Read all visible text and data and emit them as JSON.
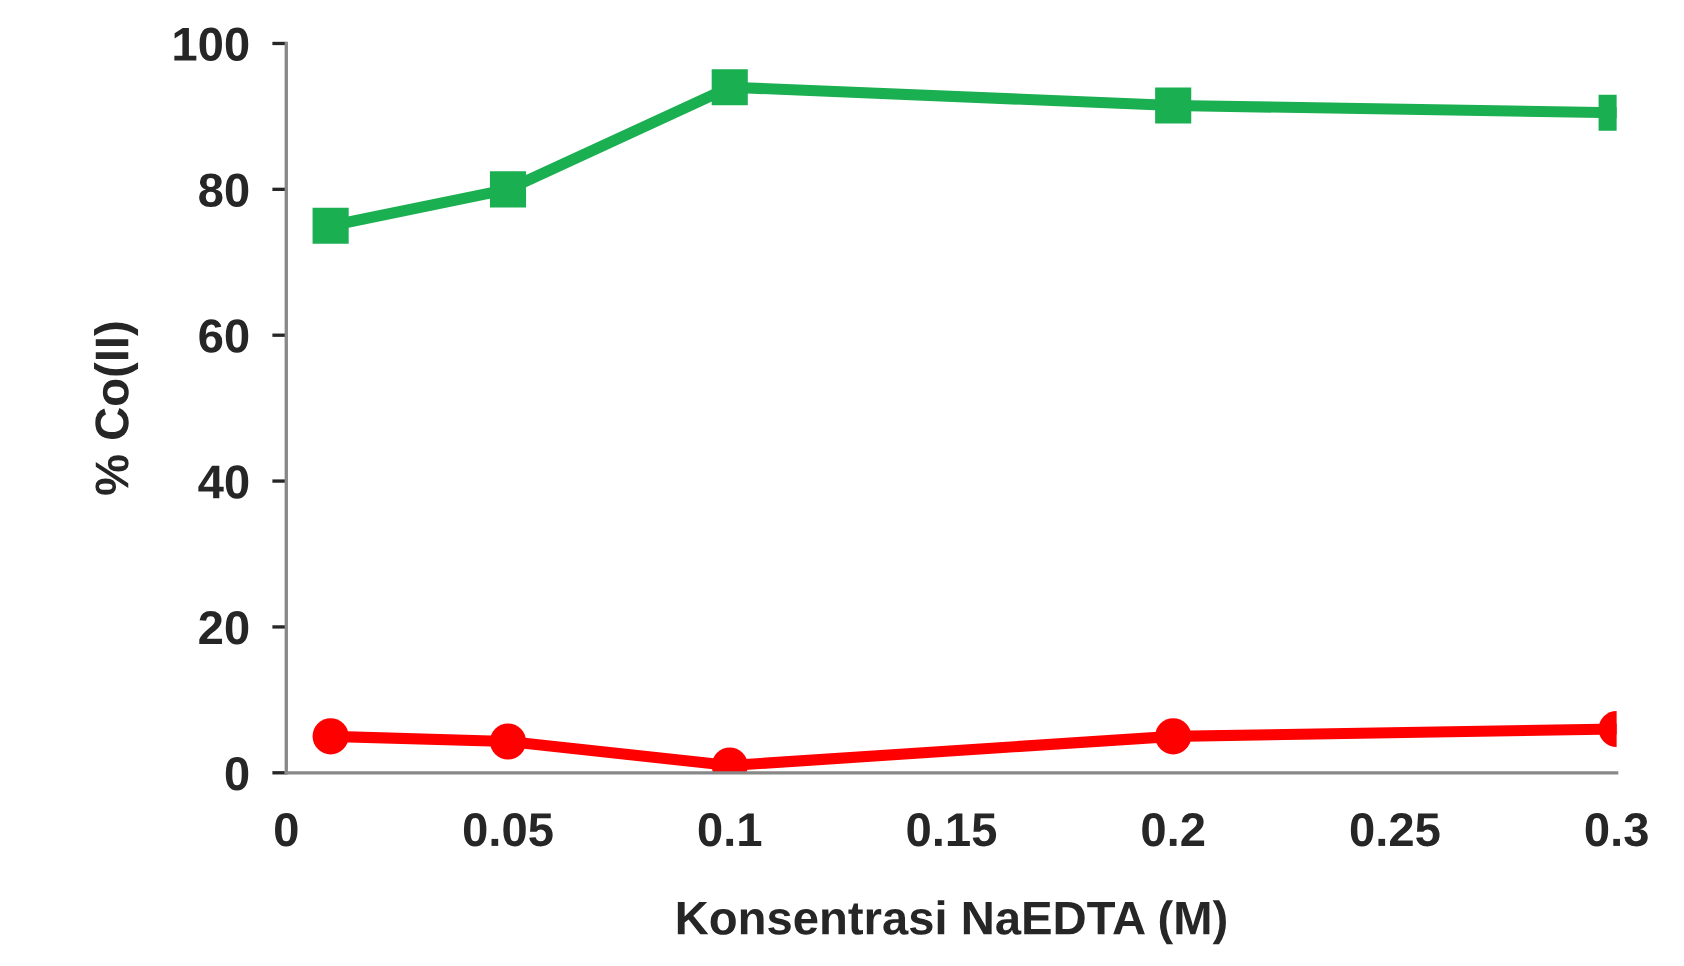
{
  "chart_data": {
    "type": "line",
    "xlabel": "Konsentrasi NaEDTA (M)",
    "ylabel": "% Co(II)",
    "x": [
      0.01,
      0.05,
      0.1,
      0.2,
      0.3
    ],
    "series": [
      {
        "color": "#1aaf50",
        "marker": "square",
        "values": [
          75,
          80,
          94,
          91.5,
          90.5
        ]
      },
      {
        "color": "#ff0000",
        "marker": "circle",
        "values": [
          5,
          4.3,
          1,
          5,
          6
        ]
      }
    ],
    "xlim": [
      0,
      0.3
    ],
    "xticks": [
      0,
      0.05,
      0.1,
      0.15,
      0.2,
      0.25,
      0.3
    ],
    "ylim": [
      0,
      100
    ],
    "yticks": [
      0,
      20,
      40,
      60,
      80,
      100
    ],
    "grid": false,
    "legend": false,
    "line_style": "solid"
  }
}
